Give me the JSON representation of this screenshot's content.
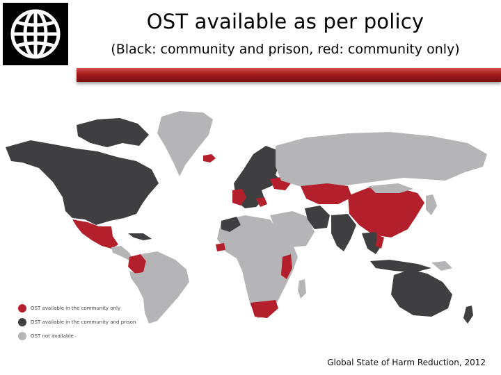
{
  "title": "OST available as per policy",
  "subtitle": "(Black: community and prison, red: community only)",
  "logo": {
    "name": "world-bank-globe-logo"
  },
  "colors": {
    "community_only": "#b3202b",
    "community_and_prison": "#3f3f41",
    "not_available": "#b5b5b8",
    "header_rule": "#a31c1c"
  },
  "legend": {
    "items": [
      {
        "label": "OST available in the community only",
        "color": "#b3202b"
      },
      {
        "label": "OST available in the community and prison",
        "color": "#3f3f41"
      },
      {
        "label": "OST not available",
        "color": "#b5b5b8"
      }
    ]
  },
  "source": "Global State of Harm Reduction, 2012"
}
